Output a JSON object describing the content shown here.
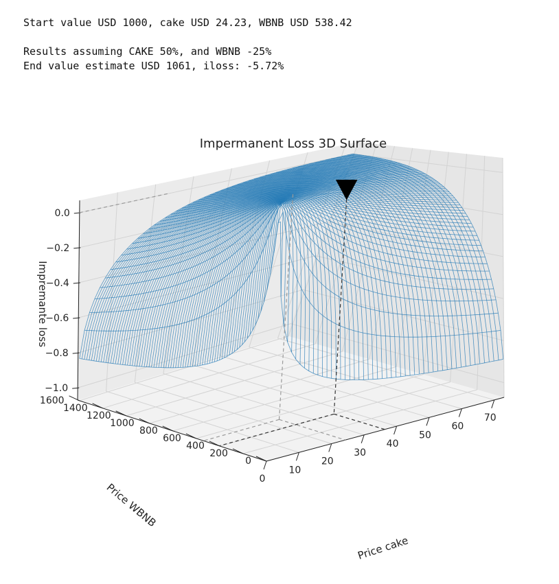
{
  "output": {
    "line1": "Start value USD 1000, cake USD 24.23, WBNB USD 538.42",
    "line2": "Results assuming CAKE 50%, and WBNB -25%",
    "line3": "End value estimate USD 1061, iloss: -5.72%"
  },
  "chart_data": {
    "type": "surface3d",
    "title": "Impermanent Loss 3D Surface",
    "xlabel": "Price cake",
    "ylabel": "Price WBNB",
    "zlabel": "Impremante loss",
    "x_ticks": [
      "0",
      "10",
      "20",
      "30",
      "40",
      "50",
      "60",
      "70"
    ],
    "y_ticks": [
      "0",
      "200",
      "400",
      "600",
      "800",
      "1000",
      "1200",
      "1400",
      "1600"
    ],
    "z_ticks": [
      "0.0",
      "−0.2",
      "−0.4",
      "−0.6",
      "−0.8",
      "−1.0"
    ],
    "xlim": [
      0,
      73
    ],
    "ylim": [
      0,
      1615
    ],
    "zlim": [
      -1.07,
      0.07
    ],
    "start_point": {
      "cake": 24.23,
      "wbnb": 538.42
    },
    "end_point": {
      "cake": 36.35,
      "wbnb": 403.82,
      "iloss": -0.0572
    },
    "surface_color": "#1f77b4",
    "marker_color": "#000000"
  }
}
